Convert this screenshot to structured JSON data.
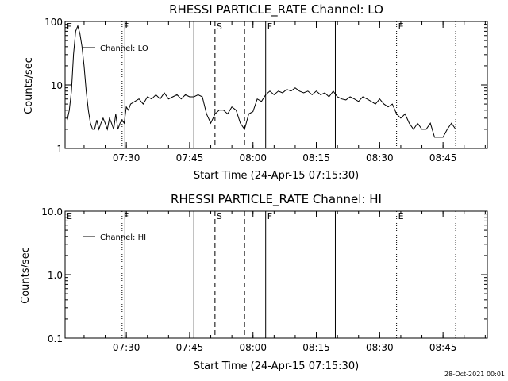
{
  "footer": {
    "date_stamp": "28-Oct-2021 00:01"
  },
  "chart_data": [
    {
      "type": "line",
      "title": "RHESSI PARTICLE_RATE Channel: LO",
      "xlabel": "Start Time (24-Apr-15 07:15:30)",
      "ylabel": "Counts/sec",
      "yscale": "log",
      "ylim": [
        1,
        100
      ],
      "y_ticks": [
        {
          "value": 1,
          "label": "1"
        },
        {
          "value": 10,
          "label": "10"
        },
        {
          "value": 100,
          "label": "100"
        }
      ],
      "xlim": [
        "07:15:30",
        "08:55:30"
      ],
      "x_ticks": [
        "07:30",
        "07:45",
        "08:00",
        "08:15",
        "08:30",
        "08:45"
      ],
      "legend": {
        "position": "top-left",
        "entries": [
          "Channel: LO"
        ]
      },
      "flags": [
        {
          "label": "E",
          "time": "07:15:30",
          "style": "dotted"
        },
        {
          "label": "F",
          "time": "07:29:00",
          "style": "dotted"
        },
        {
          "label": "",
          "time": "07:29:40",
          "style": "solid"
        },
        {
          "label": "",
          "time": "07:46:00",
          "style": "solid"
        },
        {
          "label": "S",
          "time": "07:51:00",
          "style": "dashed"
        },
        {
          "label": "",
          "time": "07:58:00",
          "style": "dashed"
        },
        {
          "label": "F",
          "time": "08:03:00",
          "style": "solid"
        },
        {
          "label": "",
          "time": "08:19:30",
          "style": "solid"
        },
        {
          "label": "E",
          "time": "08:34:00",
          "style": "dotted"
        },
        {
          "label": "",
          "time": "08:48:00",
          "style": "dotted"
        }
      ],
      "series": [
        {
          "name": "Channel: LO",
          "x": [
            "07:16:00",
            "07:16:30",
            "07:17:00",
            "07:17:30",
            "07:18:00",
            "07:18:30",
            "07:19:00",
            "07:19:30",
            "07:20:00",
            "07:20:30",
            "07:21:00",
            "07:21:30",
            "07:22:00",
            "07:22:30",
            "07:23:00",
            "07:23:30",
            "07:24:00",
            "07:24:30",
            "07:25:00",
            "07:25:30",
            "07:26:00",
            "07:26:30",
            "07:27:00",
            "07:27:30",
            "07:28:00",
            "07:28:30",
            "07:29:00",
            "07:29:30",
            "07:30:00",
            "07:30:30",
            "07:31:00",
            "07:32:00",
            "07:33:00",
            "07:34:00",
            "07:35:00",
            "07:36:00",
            "07:37:00",
            "07:38:00",
            "07:39:00",
            "07:40:00",
            "07:41:00",
            "07:42:00",
            "07:43:00",
            "07:44:00",
            "07:45:00",
            "07:46:00",
            "07:47:00",
            "07:48:00",
            "07:49:00",
            "07:50:00",
            "07:51:00",
            "07:52:00",
            "07:53:00",
            "07:54:00",
            "07:55:00",
            "07:56:00",
            "07:57:00",
            "07:58:00",
            "07:59:00",
            "08:00:00",
            "08:01:00",
            "08:02:00",
            "08:03:00",
            "08:04:00",
            "08:05:00",
            "08:06:00",
            "08:07:00",
            "08:08:00",
            "08:09:00",
            "08:10:00",
            "08:11:00",
            "08:12:00",
            "08:13:00",
            "08:14:00",
            "08:15:00",
            "08:16:00",
            "08:17:00",
            "08:18:00",
            "08:19:00",
            "08:20:00",
            "08:21:00",
            "08:22:00",
            "08:23:00",
            "08:24:00",
            "08:25:00",
            "08:26:00",
            "08:27:00",
            "08:28:00",
            "08:29:00",
            "08:30:00",
            "08:31:00",
            "08:32:00",
            "08:33:00",
            "08:34:00",
            "08:35:00",
            "08:36:00",
            "08:37:00",
            "08:38:00",
            "08:39:00",
            "08:40:00",
            "08:41:00",
            "08:42:00",
            "08:43:00",
            "08:44:00",
            "08:45:00",
            "08:46:00",
            "08:47:00",
            "08:48:00"
          ],
          "y": [
            2.8,
            4,
            8,
            30,
            70,
            85,
            65,
            40,
            20,
            8,
            4,
            2.5,
            2,
            2,
            2.8,
            2,
            2.5,
            3,
            2.5,
            2,
            3,
            2.5,
            2,
            3.5,
            2,
            2.5,
            2.8,
            2.5,
            4.5,
            4,
            5,
            5.5,
            6,
            5,
            6.5,
            6,
            7,
            6,
            7.5,
            6,
            6.5,
            7,
            6,
            7,
            6.5,
            6.5,
            7,
            6.5,
            3.5,
            2.5,
            3.5,
            4,
            4,
            3.5,
            4.5,
            4,
            2.5,
            2,
            3.5,
            3.8,
            6,
            5.5,
            7,
            8,
            7,
            8,
            7.5,
            8.5,
            8,
            9,
            8,
            7.5,
            8,
            7,
            8,
            7,
            7.5,
            6.5,
            8,
            6.5,
            6,
            5.8,
            6.5,
            6,
            5.5,
            6.5,
            6,
            5.5,
            5,
            6,
            5,
            4.5,
            5,
            3.5,
            3,
            3.5,
            2.5,
            2,
            2.5,
            2,
            2,
            2.5,
            1.5,
            1.5,
            1.5,
            2,
            2.5,
            2
          ]
        }
      ]
    },
    {
      "type": "line",
      "title": "RHESSI PARTICLE_RATE Channel: HI",
      "xlabel": "Start Time (24-Apr-15 07:15:30)",
      "ylabel": "Counts/sec",
      "yscale": "log",
      "ylim": [
        0.1,
        10
      ],
      "y_ticks": [
        {
          "value": 0.1,
          "label": "0.1"
        },
        {
          "value": 1,
          "label": "1.0"
        },
        {
          "value": 10,
          "label": "10.0"
        }
      ],
      "xlim": [
        "07:15:30",
        "08:55:30"
      ],
      "x_ticks": [
        "07:30",
        "07:45",
        "08:00",
        "08:15",
        "08:30",
        "08:45"
      ],
      "legend": {
        "position": "top-left",
        "entries": [
          "Channel: HI"
        ]
      },
      "flags": [
        {
          "label": "E",
          "time": "07:15:30",
          "style": "dotted"
        },
        {
          "label": "F",
          "time": "07:29:00",
          "style": "dotted"
        },
        {
          "label": "",
          "time": "07:29:40",
          "style": "solid"
        },
        {
          "label": "",
          "time": "07:46:00",
          "style": "solid"
        },
        {
          "label": "S",
          "time": "07:51:00",
          "style": "dashed"
        },
        {
          "label": "",
          "time": "07:58:00",
          "style": "dashed"
        },
        {
          "label": "F",
          "time": "08:03:00",
          "style": "solid"
        },
        {
          "label": "",
          "time": "08:19:30",
          "style": "solid"
        },
        {
          "label": "E",
          "time": "08:34:00",
          "style": "dotted"
        },
        {
          "label": "",
          "time": "08:48:00",
          "style": "dotted"
        }
      ],
      "series": [
        {
          "name": "Channel: HI",
          "x": [],
          "y": []
        }
      ]
    }
  ]
}
